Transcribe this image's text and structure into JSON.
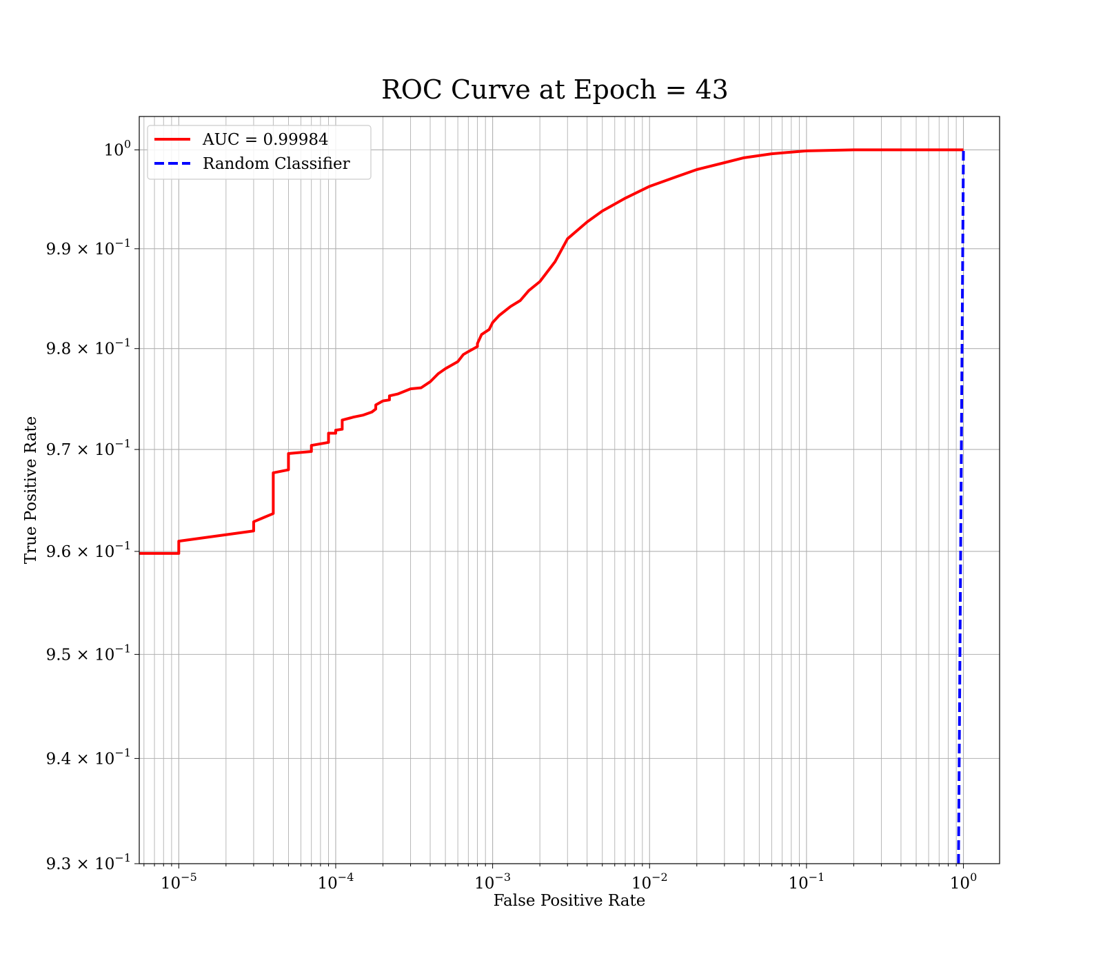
{
  "chart_data": {
    "type": "line",
    "title": "ROC Curve at Epoch = 43",
    "xlabel": "False Positive Rate",
    "ylabel": "True Positive Rate",
    "x_scale": "log",
    "y_scale": "log",
    "xlim": [
      5.6e-06,
      1.7
    ],
    "ylim": [
      0.93,
      1.0034
    ],
    "grid": true,
    "grid_which": "both",
    "legend_position": "top-left",
    "x_ticks": [
      {
        "value": 1e-05,
        "base": "10",
        "exp": "−5"
      },
      {
        "value": 0.0001,
        "base": "10",
        "exp": "−4"
      },
      {
        "value": 0.001,
        "base": "10",
        "exp": "−3"
      },
      {
        "value": 0.01,
        "base": "10",
        "exp": "−2"
      },
      {
        "value": 0.1,
        "base": "10",
        "exp": "−1"
      },
      {
        "value": 1,
        "base": "10",
        "exp": "0"
      }
    ],
    "y_ticks": [
      {
        "value": 1.0,
        "mant": "",
        "base": "10",
        "exp": "0"
      },
      {
        "value": 0.99,
        "mant": "9.9 × ",
        "base": "10",
        "exp": "−1"
      },
      {
        "value": 0.98,
        "mant": "9.8 × ",
        "base": "10",
        "exp": "−1"
      },
      {
        "value": 0.97,
        "mant": "9.7 × ",
        "base": "10",
        "exp": "−1"
      },
      {
        "value": 0.96,
        "mant": "9.6 × ",
        "base": "10",
        "exp": "−1"
      },
      {
        "value": 0.95,
        "mant": "9.5 × ",
        "base": "10",
        "exp": "−1"
      },
      {
        "value": 0.94,
        "mant": "9.4 × ",
        "base": "10",
        "exp": "−1"
      },
      {
        "value": 0.93,
        "mant": "9.3 × ",
        "base": "10",
        "exp": "−1"
      }
    ],
    "series": [
      {
        "name": "AUC = 0.99984",
        "color": "#ff0000",
        "dash": "solid",
        "points": [
          [
            5.6e-06,
            0.9598
          ],
          [
            1e-05,
            0.9598
          ],
          [
            1e-05,
            0.961
          ],
          [
            3e-05,
            0.962
          ],
          [
            3e-05,
            0.9629
          ],
          [
            4e-05,
            0.9637
          ],
          [
            4e-05,
            0.9677
          ],
          [
            5e-05,
            0.968
          ],
          [
            5e-05,
            0.9696
          ],
          [
            7e-05,
            0.9698
          ],
          [
            7e-05,
            0.9704
          ],
          [
            9e-05,
            0.9707
          ],
          [
            9e-05,
            0.9716
          ],
          [
            0.0001,
            0.9716
          ],
          [
            0.0001,
            0.9719
          ],
          [
            0.00011,
            0.972
          ],
          [
            0.00011,
            0.9729
          ],
          [
            0.00013,
            0.9732
          ],
          [
            0.00015,
            0.9734
          ],
          [
            0.00017,
            0.9737
          ],
          [
            0.00018,
            0.974
          ],
          [
            0.00018,
            0.9744
          ],
          [
            0.0002,
            0.9748
          ],
          [
            0.00022,
            0.9749
          ],
          [
            0.00022,
            0.9753
          ],
          [
            0.00025,
            0.9755
          ],
          [
            0.0003,
            0.976
          ],
          [
            0.00035,
            0.9761
          ],
          [
            0.0004,
            0.9767
          ],
          [
            0.00045,
            0.9775
          ],
          [
            0.0005,
            0.978
          ],
          [
            0.0006,
            0.9787
          ],
          [
            0.00065,
            0.9794
          ],
          [
            0.0007,
            0.9797
          ],
          [
            0.0008,
            0.9802
          ],
          [
            0.0008,
            0.9805
          ],
          [
            0.00085,
            0.9814
          ],
          [
            0.00095,
            0.9819
          ],
          [
            0.001,
            0.9826
          ],
          [
            0.0011,
            0.9833
          ],
          [
            0.0013,
            0.9842
          ],
          [
            0.0015,
            0.9848
          ],
          [
            0.0017,
            0.9858
          ],
          [
            0.002,
            0.9867
          ],
          [
            0.0025,
            0.9887
          ],
          [
            0.003,
            0.991
          ],
          [
            0.004,
            0.9927
          ],
          [
            0.005,
            0.9938
          ],
          [
            0.007,
            0.9951
          ],
          [
            0.01,
            0.9963
          ],
          [
            0.015,
            0.9973
          ],
          [
            0.02,
            0.998
          ],
          [
            0.03,
            0.9987
          ],
          [
            0.04,
            0.9992
          ],
          [
            0.06,
            0.9996
          ],
          [
            0.1,
            0.9999
          ],
          [
            0.2,
            1.0
          ],
          [
            1.0,
            1.0
          ]
        ]
      },
      {
        "name": "Random Classifier",
        "color": "#0000ff",
        "dash": "dashed",
        "points": [
          [
            0.93,
            0.93
          ],
          [
            0.95,
            0.95
          ],
          [
            0.97,
            0.97
          ],
          [
            0.99,
            0.99
          ],
          [
            1.0,
            1.0
          ]
        ]
      }
    ]
  }
}
